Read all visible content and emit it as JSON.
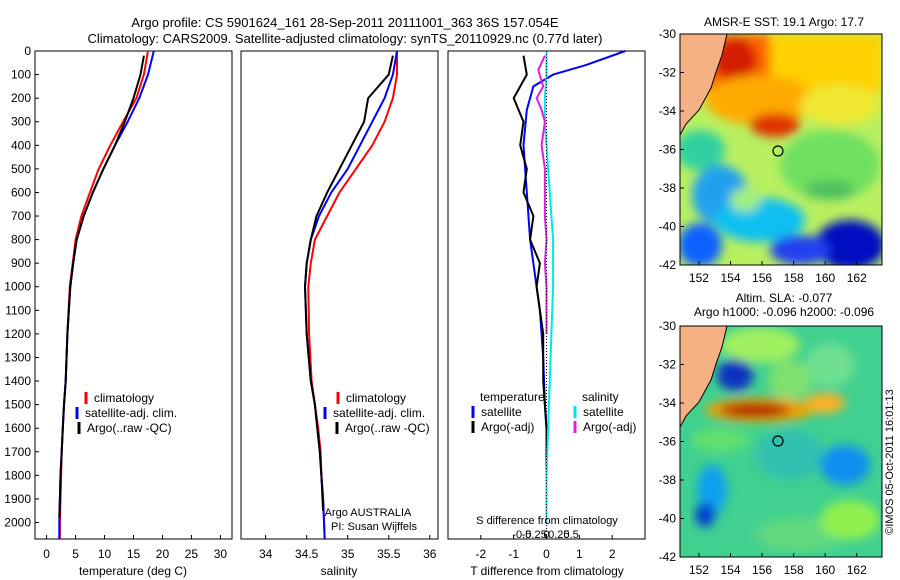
{
  "header": {
    "title_line1": "Argo profile: CS 5901624_161 28-Sep-2011 20111001_363 36S 157.054E",
    "title_line2": "Climatology: CARS2009. Satellite-adjusted climatology: synTS_20110929.nc (0.77d later)"
  },
  "colors": {
    "climatology": "#ff0000",
    "satellite": "#0000ff",
    "argo": "#000000",
    "salinity_satellite": "#00e5ee",
    "salinity_argo": "#e020e0",
    "land": "#f5b183"
  },
  "chart_data": [
    {
      "id": "temperature",
      "type": "line",
      "xlabel": "temperature (deg C)",
      "ylabel": "",
      "xlim": [
        -2,
        32
      ],
      "ylim": [
        2070,
        0
      ],
      "xticks": [
        "0",
        "5",
        "10",
        "15",
        "20",
        "25",
        "30"
      ],
      "xtick_values": [
        0,
        5,
        10,
        15,
        20,
        25,
        30
      ],
      "yticks": [
        "0",
        "100",
        "200",
        "300",
        "400",
        "500",
        "600",
        "700",
        "800",
        "900",
        "1000",
        "1100",
        "1200",
        "1300",
        "1400",
        "1500",
        "1600",
        "1700",
        "1800",
        "1900",
        "2000"
      ],
      "ytick_values": [
        0,
        100,
        200,
        300,
        400,
        500,
        600,
        700,
        800,
        900,
        1000,
        1100,
        1200,
        1300,
        1400,
        1500,
        1600,
        1700,
        1800,
        1900,
        2000
      ],
      "legend": [
        "climatology",
        "satellite-adj. clim.",
        "Argo(..raw -QC)"
      ],
      "series": [
        {
          "name": "climatology",
          "color": "#ff0000",
          "x": [
            17.5,
            16.8,
            15.5,
            13.2,
            11.0,
            9.0,
            7.5,
            6.0,
            5.0,
            4.5,
            4.0,
            3.6,
            3.3,
            3.0,
            2.8,
            2.6,
            2.5,
            2.4,
            2.3,
            2.3
          ],
          "y": [
            0,
            100,
            200,
            300,
            400,
            500,
            600,
            700,
            800,
            900,
            1000,
            1200,
            1400,
            1500,
            1600,
            1700,
            1800,
            1900,
            2000,
            2070
          ]
        },
        {
          "name": "satellite-adj. clim.",
          "color": "#0000ff",
          "x": [
            18.5,
            17.5,
            16.0,
            14.0,
            11.8,
            9.8,
            8.0,
            6.4,
            5.2,
            4.6,
            4.1,
            3.6,
            3.3,
            3.0,
            2.8,
            2.6,
            2.4,
            2.3,
            2.2,
            2.2
          ],
          "y": [
            0,
            100,
            200,
            300,
            400,
            500,
            600,
            700,
            800,
            900,
            1000,
            1200,
            1400,
            1500,
            1600,
            1700,
            1800,
            1900,
            2000,
            2070
          ]
        },
        {
          "name": "Argo(..raw -QC)",
          "color": "#000000",
          "x": [
            16.8,
            16.2,
            15.0,
            13.5,
            11.8,
            9.8,
            8.0,
            6.4,
            5.2,
            4.6,
            4.1,
            3.6,
            3.3,
            3.0,
            2.8,
            2.6,
            2.4,
            2.3,
            2.2
          ],
          "y": [
            20,
            100,
            200,
            300,
            400,
            500,
            600,
            700,
            800,
            900,
            1000,
            1200,
            1400,
            1500,
            1600,
            1700,
            1800,
            1900,
            1980
          ]
        }
      ]
    },
    {
      "id": "salinity",
      "type": "line",
      "xlabel": "salinity",
      "ylabel": "",
      "xlim": [
        33.7,
        36.1
      ],
      "ylim": [
        2070,
        0
      ],
      "xticks": [
        "34",
        "34.5",
        "35",
        "35.5",
        "36"
      ],
      "xtick_values": [
        34,
        34.5,
        35,
        35.5,
        36
      ],
      "legend": [
        "climatology",
        "satellite-adj. clim.",
        "Argo(..raw -QC)"
      ],
      "annotation_line1": "Argo AUSTRALIA",
      "annotation_line2": "PI: Susan Wijffels",
      "series": [
        {
          "name": "climatology",
          "color": "#ff0000",
          "x": [
            35.6,
            35.6,
            35.55,
            35.45,
            35.3,
            35.1,
            34.9,
            34.75,
            34.6,
            34.55,
            34.52,
            34.53,
            34.56,
            34.6,
            34.64,
            34.67,
            34.68,
            34.7,
            34.72
          ],
          "y": [
            0,
            100,
            200,
            300,
            400,
            500,
            600,
            700,
            800,
            900,
            1000,
            1200,
            1400,
            1500,
            1600,
            1700,
            1800,
            1900,
            2070
          ]
        },
        {
          "name": "satellite-adj. clim.",
          "color": "#0000ff",
          "x": [
            35.6,
            35.55,
            35.45,
            35.3,
            35.15,
            35.0,
            34.8,
            34.65,
            34.55,
            34.5,
            34.48,
            34.5,
            34.55,
            34.6,
            34.63,
            34.66,
            34.68,
            34.7,
            34.72
          ],
          "y": [
            0,
            100,
            200,
            300,
            400,
            500,
            600,
            700,
            800,
            900,
            1000,
            1200,
            1400,
            1500,
            1600,
            1700,
            1800,
            1900,
            2070
          ]
        },
        {
          "name": "Argo(..raw -QC)",
          "color": "#000000",
          "x": [
            35.55,
            35.5,
            35.25,
            35.2,
            35.05,
            34.9,
            34.75,
            34.62,
            34.55,
            34.5,
            34.48,
            34.5,
            34.55,
            34.6,
            34.63,
            34.66,
            34.68,
            34.7
          ],
          "y": [
            20,
            100,
            200,
            300,
            400,
            500,
            600,
            700,
            800,
            900,
            1000,
            1200,
            1400,
            1500,
            1600,
            1700,
            1800,
            1950
          ]
        }
      ]
    },
    {
      "id": "difference",
      "type": "line",
      "xlabel": "T difference from climatology",
      "xlabel_top": "S difference from climatology",
      "xlim": [
        -3,
        3
      ],
      "ylim": [
        2070,
        0
      ],
      "xticks": [
        "-2",
        "-1",
        "0",
        "1",
        "2"
      ],
      "xtick_values": [
        -2,
        -1,
        0,
        1,
        2
      ],
      "sticks": [
        "-0.5",
        "-0.25",
        "0",
        "0.25",
        "0.5"
      ],
      "stick_values": [
        -0.5,
        -0.25,
        0,
        0.25,
        0.5
      ],
      "legend_temperature_title": "temperature",
      "legend_salinity_title": "salinity",
      "legend_temperature": [
        "satellite",
        "Argo(-adj)"
      ],
      "legend_salinity": [
        "satellite",
        "Argo(-adj)"
      ],
      "series": [
        {
          "name": "T satellite",
          "color": "#0000ff",
          "x": [
            2.4,
            1.2,
            0.2,
            -0.4,
            -0.6,
            -0.7,
            -0.6,
            -0.5,
            -0.3,
            -0.2,
            -0.1,
            -0.05,
            0.0,
            0.0,
            0.0,
            0.0,
            0.0
          ],
          "y": [
            0,
            60,
            100,
            150,
            250,
            400,
            600,
            800,
            1000,
            1100,
            1300,
            1500,
            1600,
            1700,
            1800,
            1900,
            2000
          ]
        },
        {
          "name": "T Argo(-adj)",
          "color": "#000000",
          "x": [
            -0.7,
            -0.6,
            -1.0,
            -0.7,
            -0.8,
            -0.6,
            -0.7,
            -0.4,
            -0.5,
            -0.2,
            -0.3,
            -0.1,
            -0.1,
            0.0,
            0.0,
            0.0
          ],
          "y": [
            20,
            100,
            200,
            300,
            400,
            500,
            600,
            700,
            800,
            900,
            1000,
            1200,
            1400,
            1600,
            1800,
            1980
          ]
        },
        {
          "name": "S satellite",
          "color": "#00e5ee",
          "x": [
            0.0,
            0.0,
            -0.05,
            -0.05,
            0.0,
            0.05,
            0.1,
            0.15,
            0.2,
            0.2,
            0.2,
            0.15,
            0.1,
            0.05,
            0.0,
            0.0
          ],
          "y": [
            0,
            100,
            200,
            300,
            400,
            500,
            600,
            700,
            800,
            900,
            1000,
            1200,
            1400,
            1600,
            1800,
            2000
          ]
        },
        {
          "name": "S Argo(-adj)",
          "color": "#e020e0",
          "x": [
            -0.05,
            -0.25,
            -0.1,
            -0.3,
            -0.15,
            -0.05,
            -0.15,
            -0.05,
            -0.05,
            -0.05,
            0.0,
            -0.05,
            0.0,
            0.0,
            0.0
          ],
          "y": [
            20,
            80,
            150,
            200,
            250,
            300,
            400,
            500,
            600,
            700,
            800,
            900,
            1000,
            1100,
            1200
          ]
        }
      ]
    },
    {
      "id": "sst_map",
      "type": "heatmap",
      "title": "AMSR-E SST: 19.1  Argo: 17.7",
      "xlim": [
        150.8,
        163.6
      ],
      "ylim": [
        -42,
        -30
      ],
      "xticks": [
        "152",
        "154",
        "156",
        "158",
        "160",
        "162"
      ],
      "xtick_values": [
        152,
        154,
        156,
        158,
        160,
        162
      ],
      "yticks": [
        "-30",
        "-32",
        "-34",
        "-36",
        "-38",
        "-40",
        "-42"
      ],
      "ytick_values": [
        -30,
        -32,
        -34,
        -36,
        -38,
        -40,
        -42
      ],
      "marker": {
        "lon": 157.05,
        "lat": -36.0
      }
    },
    {
      "id": "sla_map",
      "type": "heatmap",
      "title_line1": "Altim. SLA: -0.077",
      "title_line2": "Argo h1000: -0.096 h2000: -0.096",
      "xlim": [
        150.8,
        163.6
      ],
      "ylim": [
        -42,
        -30
      ],
      "xticks": [
        "152",
        "154",
        "156",
        "158",
        "160",
        "162"
      ],
      "xtick_values": [
        152,
        154,
        156,
        158,
        160,
        162
      ],
      "yticks": [
        "-30",
        "-32",
        "-34",
        "-36",
        "-38",
        "-40",
        "-42"
      ],
      "ytick_values": [
        -30,
        -32,
        -34,
        -36,
        -38,
        -40,
        -42
      ],
      "marker": {
        "lon": 157.05,
        "lat": -36.0
      }
    }
  ],
  "footer": {
    "credit": "©IMOS 05-Oct-2011 16:01:13"
  }
}
